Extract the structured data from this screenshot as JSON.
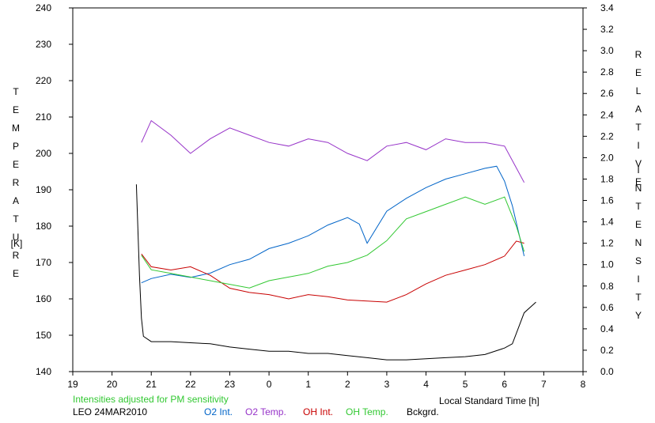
{
  "chart_data": {
    "type": "line",
    "x_axis": {
      "label": "Local Standard Time [h]",
      "ticks": [
        "19",
        "20",
        "21",
        "22",
        "23",
        "0",
        "1",
        "2",
        "3",
        "4",
        "5",
        "6",
        "7",
        "8"
      ],
      "range": [
        19,
        32
      ]
    },
    "y_left": {
      "label_letters": [
        "T",
        "E",
        "M",
        "P",
        "E",
        "R",
        "A",
        "T",
        "U",
        "R",
        "E"
      ],
      "unit": "[K]",
      "range": [
        140,
        240
      ],
      "ticks": [
        "140",
        "150",
        "160",
        "170",
        "180",
        "190",
        "200",
        "210",
        "220",
        "230",
        "240"
      ]
    },
    "y_right": {
      "label_word1": [
        "R",
        "E",
        "L",
        "A",
        "T",
        "I",
        "V",
        "E"
      ],
      "label_word2": [
        "I",
        "N",
        "T",
        "E",
        "N",
        "S",
        "I",
        "T",
        "Y"
      ],
      "range": [
        0,
        3.4
      ],
      "ticks": [
        "0.0",
        "0.2",
        "0.4",
        "0.6",
        "0.8",
        "1.0",
        "1.2",
        "1.4",
        "1.6",
        "1.8",
        "2.0",
        "2.2",
        "2.4",
        "2.6",
        "2.8",
        "3.0",
        "3.2",
        "3.4"
      ]
    },
    "note": "Intensities adjusted for PM sensitivity",
    "station": "LEO 24MAR2010",
    "grid": false,
    "series": [
      {
        "name": "O2 Int.",
        "color": "#0064c8",
        "axis": "right",
        "x": [
          20.75,
          21.0,
          21.5,
          22.0,
          22.5,
          23.0,
          23.5,
          24.0,
          24.5,
          25.0,
          25.5,
          26.0,
          26.3,
          26.5,
          27.0,
          27.5,
          28.0,
          28.5,
          29.0,
          29.5,
          29.8,
          30.0,
          30.2,
          30.5
        ],
        "y": [
          0.83,
          0.87,
          0.91,
          0.88,
          0.92,
          1.0,
          1.05,
          1.15,
          1.2,
          1.27,
          1.37,
          1.44,
          1.38,
          1.2,
          1.5,
          1.62,
          1.72,
          1.8,
          1.85,
          1.9,
          1.92,
          1.78,
          1.55,
          1.08
        ]
      },
      {
        "name": "O2 Temp.",
        "color": "#9632c8",
        "axis": "left",
        "x": [
          20.75,
          21.0,
          21.5,
          22.0,
          22.5,
          23.0,
          23.5,
          24.0,
          24.5,
          25.0,
          25.5,
          26.0,
          26.5,
          27.0,
          27.5,
          28.0,
          28.5,
          29.0,
          29.5,
          30.0,
          30.3,
          30.5
        ],
        "y": [
          203,
          209,
          205,
          200,
          204,
          207,
          205,
          203,
          202,
          204,
          203,
          200,
          198,
          202,
          203,
          201,
          204,
          203,
          203,
          202,
          196,
          192
        ]
      },
      {
        "name": "OH Int.",
        "color": "#c80000",
        "axis": "right",
        "x": [
          20.75,
          21.0,
          21.5,
          22.0,
          22.5,
          23.0,
          23.5,
          24.0,
          24.5,
          25.0,
          25.5,
          26.0,
          26.5,
          27.0,
          27.5,
          28.0,
          28.5,
          29.0,
          29.5,
          30.0,
          30.3,
          30.5
        ],
        "y": [
          1.1,
          0.98,
          0.95,
          0.98,
          0.9,
          0.78,
          0.74,
          0.72,
          0.68,
          0.72,
          0.7,
          0.67,
          0.66,
          0.65,
          0.72,
          0.82,
          0.9,
          0.95,
          1.0,
          1.08,
          1.22,
          1.2
        ]
      },
      {
        "name": "OH Temp.",
        "color": "#32c832",
        "axis": "left",
        "x": [
          20.75,
          21.0,
          21.5,
          22.0,
          22.5,
          23.0,
          23.5,
          24.0,
          24.5,
          25.0,
          25.5,
          26.0,
          26.5,
          27.0,
          27.5,
          28.0,
          28.5,
          29.0,
          29.5,
          30.0,
          30.3,
          30.5
        ],
        "y": [
          172,
          168,
          167,
          166,
          165,
          164,
          163,
          165,
          166,
          167,
          169,
          170,
          172,
          176,
          182,
          184,
          186,
          188,
          186,
          188,
          180,
          173
        ]
      },
      {
        "name": "Bckgrd.",
        "color": "#000000",
        "axis": "right",
        "x": [
          20.62,
          20.7,
          20.75,
          20.8,
          21.0,
          21.5,
          22.0,
          22.5,
          23.0,
          23.5,
          24.0,
          24.5,
          25.0,
          25.5,
          26.0,
          26.5,
          27.0,
          27.5,
          28.0,
          28.5,
          29.0,
          29.5,
          30.0,
          30.2,
          30.5,
          30.8
        ],
        "y": [
          1.75,
          0.9,
          0.5,
          0.33,
          0.28,
          0.28,
          0.27,
          0.26,
          0.23,
          0.21,
          0.19,
          0.19,
          0.17,
          0.17,
          0.15,
          0.13,
          0.11,
          0.11,
          0.12,
          0.13,
          0.14,
          0.16,
          0.22,
          0.26,
          0.55,
          0.65
        ]
      }
    ]
  },
  "legend": [
    {
      "label": "O2 Int.",
      "color": "#0064c8"
    },
    {
      "label": "O2 Temp.",
      "color": "#9632c8"
    },
    {
      "label": "OH Int.",
      "color": "#c80000"
    },
    {
      "label": "OH Temp.",
      "color": "#32c832"
    },
    {
      "label": "Bckgrd.",
      "color": "#000000"
    }
  ]
}
